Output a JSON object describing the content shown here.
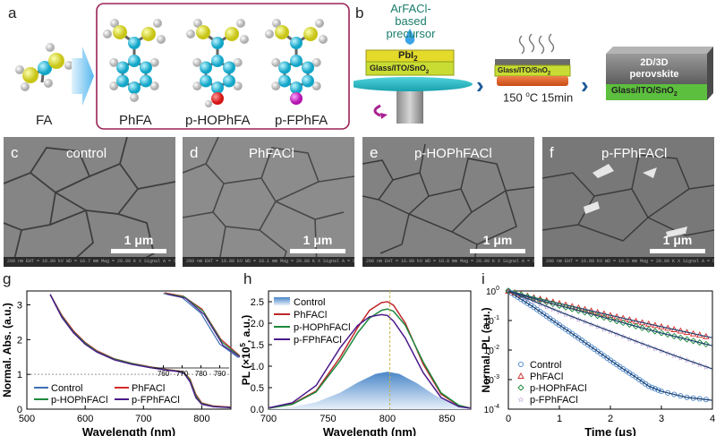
{
  "panel_labels": {
    "a": "a",
    "b": "b",
    "c": "c",
    "d": "d",
    "e": "e",
    "f": "f",
    "g": "g",
    "h": "h",
    "i": "i"
  },
  "panel_a": {
    "molecules": [
      "FA",
      "PhFA",
      "p-HOPhFA",
      "p-FPhFA"
    ]
  },
  "panel_b": {
    "precursor_line1": "ArFACl-based",
    "precursor_line2": "precursor",
    "pbi2": "PbI",
    "pbi2_sub": "2",
    "substrate": "Glass/ITO/SnO",
    "substrate_sub": "2",
    "anneal": "150 ",
    "anneal_sup": "o",
    "anneal_rest": "C 15min",
    "layer_2d3d": "2D/3D",
    "layer_perov": "perovskite"
  },
  "sem": [
    {
      "letter": "c",
      "title": "control",
      "scale": "1 μm",
      "info": "200 nm   EHT = 10.00 kV   WD = 10.7 mm   Mag = 20.00 K X  Signal A = SE2"
    },
    {
      "letter": "d",
      "title": "PhFACl",
      "scale": "1 μm",
      "info": "200 nm   EHT = 10.00 kV   WD = 10.1 mm   Mag = 20.00 K X  Signal A = SE2"
    },
    {
      "letter": "e",
      "title": "p-HOPhFACl",
      "scale": "1 μm",
      "info": "200 nm   EHT = 10.00 kV   WD = 10.0 mm   Mag = 20.00 K X  Signal A = SE2"
    },
    {
      "letter": "f",
      "title": "p-FPhFACl",
      "scale": "1 μm",
      "info": "200 nm   EHT = 10.00 kV   WD = 10.5 mm   Mag = 20.00 K X  Signal A = SE2"
    }
  ],
  "chart_data": [
    {
      "type": "line",
      "panel": "g",
      "xlabel": "Wavelength (nm)",
      "ylabel": "Normal. Abs. (a.u.)",
      "xlim": [
        500,
        850
      ],
      "ylim": [
        0,
        3.4
      ],
      "xticks": [
        "500",
        "600",
        "700",
        "800"
      ],
      "yticks": [
        "0",
        "1",
        "2",
        "3"
      ],
      "inset": {
        "xticks": [
          "760",
          "770",
          "780",
          "790"
        ]
      },
      "legend": [
        "Control",
        "PhFACl",
        "p-HOPhFACl",
        "p-FPhFACl"
      ],
      "colors": [
        "#3d6fb6",
        "#d42a2a",
        "#1e8a3c",
        "#4b1a8a"
      ],
      "series": [
        {
          "name": "Control",
          "x": [
            540,
            560,
            580,
            600,
            620,
            650,
            680,
            710,
            740,
            760,
            770,
            780,
            790,
            800,
            820,
            850
          ],
          "y": [
            3.3,
            2.65,
            2.2,
            1.88,
            1.65,
            1.43,
            1.3,
            1.2,
            1.13,
            1.09,
            1.03,
            0.8,
            0.35,
            0.15,
            0.08,
            0.05
          ]
        },
        {
          "name": "PhFACl",
          "x": [
            540,
            560,
            580,
            600,
            620,
            650,
            680,
            710,
            740,
            760,
            770,
            780,
            790,
            800,
            820,
            850
          ],
          "y": [
            3.3,
            2.7,
            2.25,
            1.92,
            1.68,
            1.45,
            1.32,
            1.22,
            1.14,
            1.1,
            1.05,
            0.86,
            0.42,
            0.18,
            0.09,
            0.06
          ]
        },
        {
          "name": "p-HOPhFACl",
          "x": [
            540,
            560,
            580,
            600,
            620,
            650,
            680,
            710,
            740,
            760,
            770,
            780,
            790,
            800,
            820,
            850
          ],
          "y": [
            3.3,
            2.67,
            2.22,
            1.9,
            1.66,
            1.44,
            1.31,
            1.21,
            1.13,
            1.09,
            1.04,
            0.83,
            0.38,
            0.16,
            0.08,
            0.05
          ]
        },
        {
          "name": "p-FPhFACl",
          "x": [
            540,
            560,
            580,
            600,
            620,
            650,
            680,
            710,
            740,
            760,
            770,
            780,
            790,
            800,
            820,
            850
          ],
          "y": [
            3.3,
            2.64,
            2.2,
            1.87,
            1.64,
            1.42,
            1.29,
            1.2,
            1.12,
            1.08,
            1.02,
            0.78,
            0.33,
            0.14,
            0.07,
            0.04
          ]
        }
      ]
    },
    {
      "type": "line",
      "panel": "h",
      "xlabel": "Wavelength (nm)",
      "ylabel": "PL (×10",
      "ylabel_sup": "5",
      "ylabel_end": ", a.u.)",
      "xlim": [
        700,
        870
      ],
      "ylim": [
        0,
        2.75
      ],
      "xticks": [
        "700",
        "750",
        "800",
        "850"
      ],
      "yticks": [
        "0.0",
        "0.5",
        "1.0",
        "1.5",
        "2.0",
        "2.5"
      ],
      "legend": [
        "Control",
        "PhFACl",
        "p-HOPhFACl",
        "p-FPhFACl"
      ],
      "colors": [
        "#4a86c8",
        "#c0282c",
        "#1e8a3c",
        "#4b1a8a"
      ],
      "series": [
        {
          "name": "Control",
          "type": "area",
          "x": [
            700,
            720,
            740,
            760,
            775,
            790,
            800,
            810,
            825,
            840,
            855,
            870
          ],
          "y": [
            0.01,
            0.05,
            0.16,
            0.38,
            0.62,
            0.82,
            0.87,
            0.82,
            0.6,
            0.32,
            0.12,
            0.03
          ]
        },
        {
          "name": "PhFACl",
          "x": [
            700,
            720,
            740,
            760,
            775,
            785,
            795,
            800,
            805,
            815,
            830,
            845,
            860,
            870
          ],
          "y": [
            0.02,
            0.12,
            0.42,
            1.2,
            1.9,
            2.3,
            2.48,
            2.5,
            2.42,
            2.0,
            1.05,
            0.35,
            0.08,
            0.02
          ]
        },
        {
          "name": "p-HOPhFACl",
          "x": [
            700,
            720,
            740,
            760,
            775,
            785,
            795,
            800,
            805,
            815,
            830,
            845,
            860,
            870
          ],
          "y": [
            0.02,
            0.11,
            0.4,
            1.12,
            1.78,
            2.12,
            2.3,
            2.33,
            2.28,
            1.95,
            1.1,
            0.38,
            0.09,
            0.02
          ]
        },
        {
          "name": "p-FPhFACl",
          "x": [
            700,
            720,
            740,
            760,
            775,
            785,
            795,
            800,
            805,
            815,
            830,
            845,
            860,
            870
          ],
          "y": [
            0.03,
            0.15,
            0.55,
            1.42,
            1.95,
            2.15,
            2.2,
            2.18,
            2.05,
            1.65,
            0.85,
            0.27,
            0.06,
            0.02
          ]
        }
      ],
      "vline": 802
    },
    {
      "type": "scatter",
      "panel": "i",
      "xlabel": "Time (μs)",
      "ylabel": "Normal. PL (a.u.)",
      "xlim": [
        0,
        4
      ],
      "ylim_log10": [
        -4,
        0
      ],
      "yscale": "log",
      "xticks": [
        "0",
        "1",
        "2",
        "3",
        "4"
      ],
      "yticks": [
        "10",
        "10",
        "10",
        "10",
        "10"
      ],
      "yticks_sup": [
        "-4",
        "-3",
        "-2",
        "-1",
        "0"
      ],
      "legend": [
        "Control",
        "PhFACl",
        "p-HOPhFACl",
        "p-FPhFACl"
      ],
      "markers": [
        "circle",
        "triangle",
        "diamond",
        "star"
      ],
      "colors": [
        "#4a86c8",
        "#d42a2a",
        "#1e8a3c",
        "#6a2a9a"
      ],
      "fit_color": "#1d3f6e",
      "series": [
        {
          "name": "Control",
          "x": [
            0,
            0.25,
            0.5,
            0.75,
            1.0,
            1.25,
            1.5,
            1.75,
            2.0,
            2.25,
            2.5,
            2.75,
            3.0,
            3.5,
            4.0
          ],
          "y": [
            1,
            0.52,
            0.28,
            0.14,
            0.07,
            0.036,
            0.018,
            0.009,
            0.0045,
            0.0023,
            0.0012,
            0.0006,
            0.0004,
            0.00025,
            0.0002
          ]
        },
        {
          "name": "PhFACl",
          "x": [
            0,
            0.5,
            1.0,
            1.5,
            2.0,
            2.5,
            3.0,
            3.5,
            4.0
          ],
          "y": [
            1,
            0.6,
            0.38,
            0.24,
            0.15,
            0.095,
            0.062,
            0.04,
            0.026
          ]
        },
        {
          "name": "p-HOPhFACl",
          "x": [
            0,
            0.5,
            1.0,
            1.5,
            2.0,
            2.5,
            3.0,
            3.5,
            4.0
          ],
          "y": [
            1,
            0.55,
            0.32,
            0.19,
            0.11,
            0.064,
            0.038,
            0.023,
            0.014
          ]
        },
        {
          "name": "p-FPhFACl",
          "x": [
            0,
            0.5,
            1.0,
            1.5,
            2.0,
            2.5,
            3.0,
            3.5,
            4.0
          ],
          "y": [
            1,
            0.45,
            0.2,
            0.092,
            0.043,
            0.02,
            0.0095,
            0.0046,
            0.0023
          ]
        }
      ]
    }
  ]
}
